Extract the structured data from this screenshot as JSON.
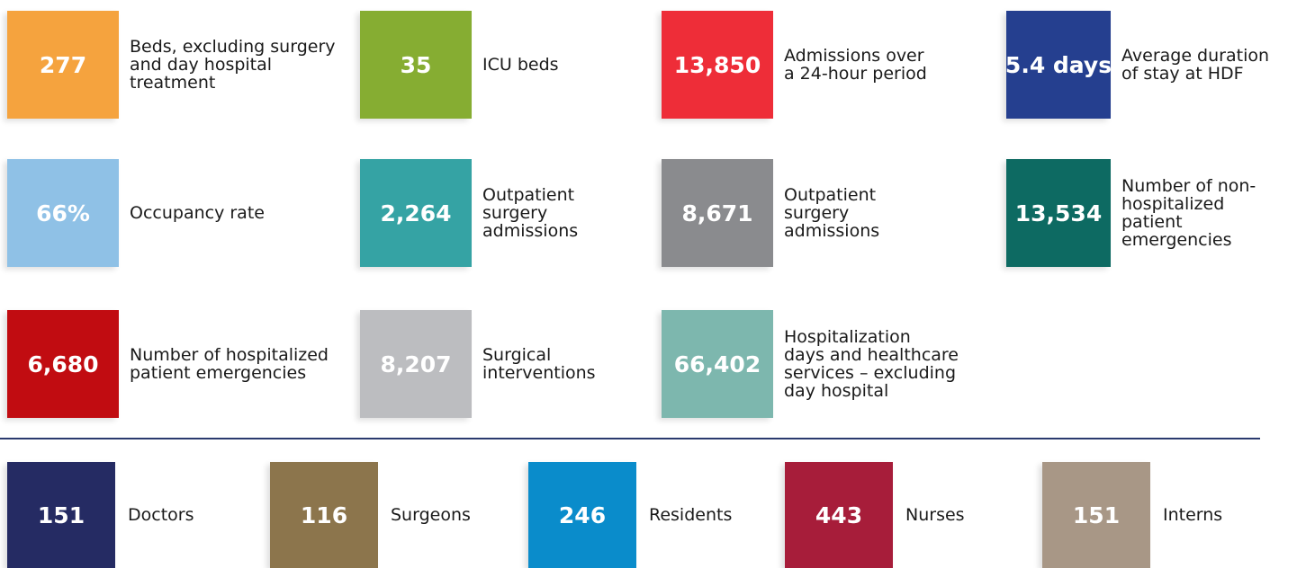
{
  "stats": [
    {
      "value": "277",
      "label": [
        "Beds, excluding surgery",
        "and day hospital",
        "treatment"
      ],
      "color": "#f5a33e"
    },
    {
      "value": "35",
      "label": [
        "ICU beds"
      ],
      "color": "#86ad32"
    },
    {
      "value": "13,850",
      "label": [
        "Admissions over",
        "a 24-hour period"
      ],
      "color": "#ee2d38"
    },
    {
      "value": "5.4 days",
      "label": [
        "Average duration",
        "of stay at HDF"
      ],
      "color": "#253f8f"
    },
    {
      "value": "66%",
      "label": [
        "Occupancy rate"
      ],
      "color": "#8fc1e6"
    },
    {
      "value": "2,264",
      "label": [
        "Outpatient",
        "surgery",
        "admissions"
      ],
      "color": "#35a3a4"
    },
    {
      "value": "8,671",
      "label": [
        "Outpatient",
        "surgery",
        "admissions"
      ],
      "color": "#8a8b8e"
    },
    {
      "value": "13,534",
      "label": [
        "Number of non-",
        "hospitalized",
        "patient",
        "emergencies"
      ],
      "color": "#0d6a62"
    },
    {
      "value": "6,680",
      "label": [
        "Number of hospitalized",
        "patient emergencies"
      ],
      "color": "#c10c11"
    },
    {
      "value": "8,207",
      "label": [
        "Surgical",
        "interventions"
      ],
      "color": "#bcbdc0"
    },
    {
      "value": "66,402",
      "label": [
        "Hospitalization",
        "days and healthcare",
        "services – excluding",
        "day hospital"
      ],
      "color": "#7db7ae"
    }
  ],
  "staff": [
    {
      "value": "151",
      "label": "Doctors",
      "color": "#252b63"
    },
    {
      "value": "116",
      "label": "Surgeons",
      "color": "#8c754c"
    },
    {
      "value": "246",
      "label": "Residents",
      "color": "#0a8ccb"
    },
    {
      "value": "443",
      "label": "Nurses",
      "color": "#a71d3a"
    },
    {
      "value": "151",
      "label": "Interns",
      "color": "#a89786"
    }
  ]
}
